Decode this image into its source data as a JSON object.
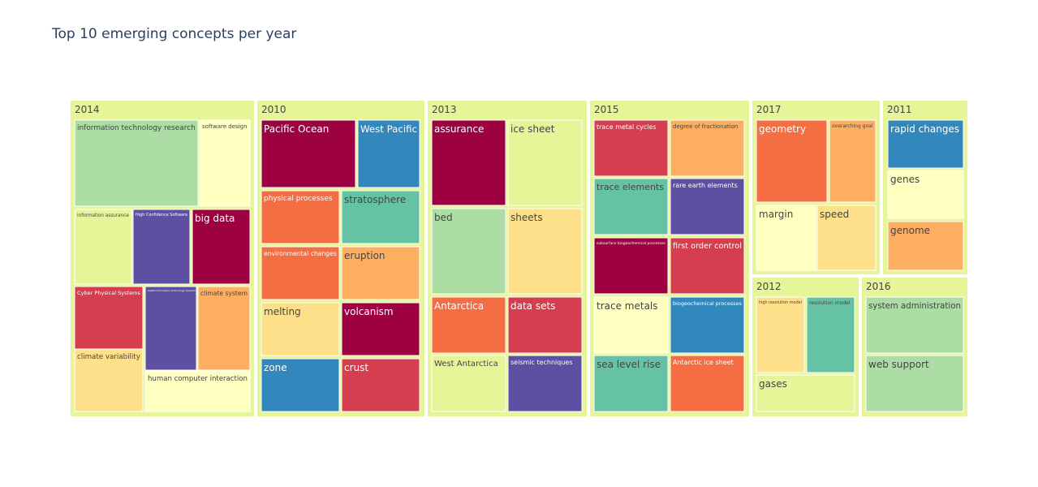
{
  "chart_data": {
    "type": "treemap",
    "title": "Top 10 emerging concepts per year",
    "colors": {
      "group_bg": "#e6f598",
      "crimson": "#9e0142",
      "red": "#d53e4f",
      "orange": "#f46d43",
      "light_orange": "#fdae61",
      "yellow": "#fee08b",
      "cream": "#ffffbf",
      "lime": "#e6f598",
      "light_green": "#abdda4",
      "teal": "#66c2a5",
      "blue": "#3288bd",
      "purple": "#5e4fa2"
    },
    "groups": [
      {
        "name": "2014",
        "items": [
          {
            "label": "information technology research",
            "color": "light_green"
          },
          {
            "label": "software design",
            "color": "cream"
          },
          {
            "label": "information assurance",
            "color": "lime"
          },
          {
            "label": "High Confidence Software",
            "color": "purple"
          },
          {
            "label": "big data",
            "color": "crimson"
          },
          {
            "label": "Cyber Physical Systems",
            "color": "red"
          },
          {
            "label": "health information technology research",
            "color": "purple"
          },
          {
            "label": "climate system",
            "color": "light_orange"
          },
          {
            "label": "climate variability",
            "color": "yellow"
          },
          {
            "label": "human computer interaction",
            "color": "cream"
          }
        ]
      },
      {
        "name": "2010",
        "items": [
          {
            "label": "Pacific Ocean",
            "color": "crimson"
          },
          {
            "label": "West Pacific",
            "color": "blue"
          },
          {
            "label": "physical processes",
            "color": "orange"
          },
          {
            "label": "stratosphere",
            "color": "teal"
          },
          {
            "label": "environmental changes",
            "color": "orange"
          },
          {
            "label": "eruption",
            "color": "light_orange"
          },
          {
            "label": "melting",
            "color": "yellow"
          },
          {
            "label": "volcanism",
            "color": "crimson"
          },
          {
            "label": "zone",
            "color": "blue"
          },
          {
            "label": "crust",
            "color": "red"
          }
        ]
      },
      {
        "name": "2013",
        "items": [
          {
            "label": "assurance",
            "color": "crimson"
          },
          {
            "label": "ice sheet",
            "color": "lime"
          },
          {
            "label": "bed",
            "color": "light_green"
          },
          {
            "label": "sheets",
            "color": "yellow"
          },
          {
            "label": "Antarctica",
            "color": "orange"
          },
          {
            "label": "data sets",
            "color": "red"
          },
          {
            "label": "West Antarctica",
            "color": "lime"
          },
          {
            "label": "seismic techniques",
            "color": "purple"
          }
        ]
      },
      {
        "name": "2015",
        "items": [
          {
            "label": "trace metal cycles",
            "color": "red"
          },
          {
            "label": "degree of fractionation",
            "color": "light_orange"
          },
          {
            "label": "trace elements",
            "color": "teal"
          },
          {
            "label": "rare earth elements",
            "color": "purple"
          },
          {
            "label": "subsurface biogeochemical processes",
            "color": "crimson"
          },
          {
            "label": "first order control",
            "color": "red"
          },
          {
            "label": "trace metals",
            "color": "cream"
          },
          {
            "label": "biogeochemical processes",
            "color": "blue"
          },
          {
            "label": "sea level rise",
            "color": "teal"
          },
          {
            "label": "Antarctic ice sheet",
            "color": "orange"
          }
        ]
      },
      {
        "name": "2017",
        "items": [
          {
            "label": "geometry",
            "color": "orange"
          },
          {
            "label": "overarching goal",
            "color": "light_orange"
          },
          {
            "label": "margin",
            "color": "cream"
          },
          {
            "label": "speed",
            "color": "yellow"
          }
        ]
      },
      {
        "name": "2011",
        "items": [
          {
            "label": "rapid changes",
            "color": "blue"
          },
          {
            "label": "genes",
            "color": "cream"
          },
          {
            "label": "genome",
            "color": "light_orange"
          }
        ]
      },
      {
        "name": "2012",
        "items": [
          {
            "label": "high resolution model",
            "color": "yellow"
          },
          {
            "label": "resolution model",
            "color": "teal"
          },
          {
            "label": "gases",
            "color": "lime"
          }
        ]
      },
      {
        "name": "2016",
        "items": [
          {
            "label": "system administration",
            "color": "light_green"
          },
          {
            "label": "web support",
            "color": "light_green"
          }
        ]
      }
    ]
  }
}
